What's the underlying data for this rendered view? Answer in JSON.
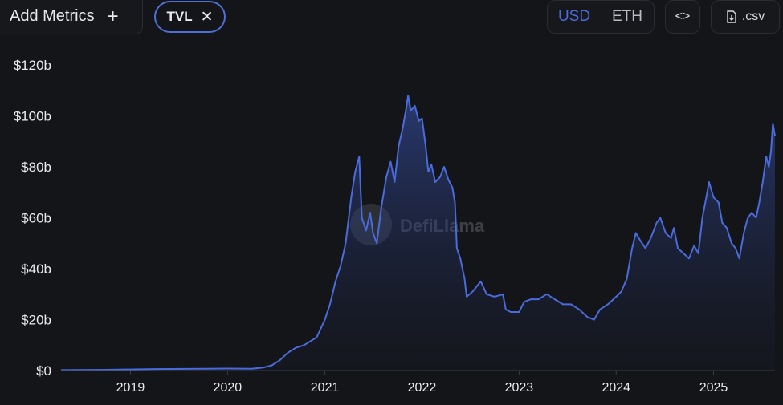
{
  "toolbar": {
    "add_metrics_label": "Add Metrics",
    "add_icon": "+",
    "metric_chip_label": "TVL",
    "remove_icon": "✕",
    "currency_options": [
      "USD",
      "ETH"
    ],
    "selected_currency": "USD",
    "embed_icon": "<>",
    "csv_label": ".csv"
  },
  "watermark": "DefiLlama",
  "colors": {
    "background": "#141518",
    "line": "#4a6bdc",
    "accent": "#4a6bdc"
  },
  "chart_data": {
    "type": "area",
    "title": "",
    "xlabel": "",
    "ylabel": "",
    "ylim": [
      0,
      120
    ],
    "y_unit": "b",
    "y_ticks": [
      "$0",
      "$20b",
      "$40b",
      "$60b",
      "$80b",
      "$100b",
      "$120b"
    ],
    "x_ticks": [
      "2019",
      "2020",
      "2021",
      "2022",
      "2023",
      "2024",
      "2025"
    ],
    "xlim": [
      "2018-04-15",
      "2025-08-20"
    ],
    "grid": false,
    "series": [
      {
        "name": "TVL",
        "points": [
          [
            "2018-04-15",
            0.2
          ],
          [
            "2018-10-01",
            0.3
          ],
          [
            "2019-04-01",
            0.6
          ],
          [
            "2019-10-01",
            0.7
          ],
          [
            "2020-01-01",
            0.8
          ],
          [
            "2020-04-01",
            0.7
          ],
          [
            "2020-05-15",
            1.2
          ],
          [
            "2020-06-15",
            2
          ],
          [
            "2020-07-15",
            4
          ],
          [
            "2020-08-15",
            7
          ],
          [
            "2020-09-15",
            9
          ],
          [
            "2020-10-15",
            10
          ],
          [
            "2020-12-01",
            13
          ],
          [
            "2021-01-01",
            20
          ],
          [
            "2021-01-20",
            26
          ],
          [
            "2021-02-10",
            35
          ],
          [
            "2021-03-01",
            41
          ],
          [
            "2021-03-20",
            50
          ],
          [
            "2021-04-10",
            68
          ],
          [
            "2021-04-25",
            78
          ],
          [
            "2021-05-10",
            84
          ],
          [
            "2021-05-20",
            60
          ],
          [
            "2021-06-05",
            55
          ],
          [
            "2021-06-20",
            62
          ],
          [
            "2021-07-01",
            54
          ],
          [
            "2021-07-15",
            50
          ],
          [
            "2021-08-01",
            64
          ],
          [
            "2021-08-20",
            76
          ],
          [
            "2021-09-05",
            82
          ],
          [
            "2021-09-20",
            74
          ],
          [
            "2021-10-05",
            88
          ],
          [
            "2021-10-20",
            95
          ],
          [
            "2021-11-01",
            102
          ],
          [
            "2021-11-10",
            108
          ],
          [
            "2021-11-20",
            102
          ],
          [
            "2021-12-05",
            104
          ],
          [
            "2021-12-20",
            98
          ],
          [
            "2022-01-01",
            99
          ],
          [
            "2022-01-15",
            88
          ],
          [
            "2022-01-25",
            78
          ],
          [
            "2022-02-05",
            81
          ],
          [
            "2022-02-20",
            74
          ],
          [
            "2022-03-10",
            76
          ],
          [
            "2022-03-25",
            80
          ],
          [
            "2022-04-10",
            75
          ],
          [
            "2022-04-25",
            72
          ],
          [
            "2022-05-05",
            66
          ],
          [
            "2022-05-12",
            48
          ],
          [
            "2022-05-25",
            44
          ],
          [
            "2022-06-10",
            36
          ],
          [
            "2022-06-18",
            29
          ],
          [
            "2022-07-10",
            31
          ],
          [
            "2022-08-10",
            35
          ],
          [
            "2022-09-01",
            30
          ],
          [
            "2022-10-01",
            29
          ],
          [
            "2022-11-01",
            30
          ],
          [
            "2022-11-12",
            24
          ],
          [
            "2022-12-01",
            23
          ],
          [
            "2023-01-01",
            23
          ],
          [
            "2023-01-20",
            27
          ],
          [
            "2023-02-15",
            28
          ],
          [
            "2023-03-15",
            28
          ],
          [
            "2023-04-15",
            30
          ],
          [
            "2023-05-15",
            28
          ],
          [
            "2023-06-15",
            26
          ],
          [
            "2023-07-15",
            26
          ],
          [
            "2023-08-15",
            24
          ],
          [
            "2023-09-15",
            21
          ],
          [
            "2023-10-10",
            20
          ],
          [
            "2023-11-01",
            24
          ],
          [
            "2023-12-01",
            26
          ],
          [
            "2024-01-01",
            29
          ],
          [
            "2024-01-20",
            31
          ],
          [
            "2024-02-10",
            36
          ],
          [
            "2024-03-01",
            48
          ],
          [
            "2024-03-15",
            54
          ],
          [
            "2024-04-01",
            51
          ],
          [
            "2024-04-20",
            48
          ],
          [
            "2024-05-10",
            52
          ],
          [
            "2024-06-01",
            58
          ],
          [
            "2024-06-15",
            60
          ],
          [
            "2024-07-05",
            54
          ],
          [
            "2024-07-25",
            52
          ],
          [
            "2024-08-05",
            56
          ],
          [
            "2024-08-20",
            48
          ],
          [
            "2024-09-10",
            46
          ],
          [
            "2024-10-01",
            44
          ],
          [
            "2024-10-20",
            49
          ],
          [
            "2024-11-05",
            46
          ],
          [
            "2024-11-20",
            60
          ],
          [
            "2024-12-05",
            68
          ],
          [
            "2024-12-15",
            74
          ],
          [
            "2025-01-01",
            68
          ],
          [
            "2025-01-20",
            66
          ],
          [
            "2025-02-03",
            58
          ],
          [
            "2025-02-20",
            56
          ],
          [
            "2025-03-10",
            50
          ],
          [
            "2025-03-25",
            48
          ],
          [
            "2025-04-08",
            44
          ],
          [
            "2025-04-25",
            54
          ],
          [
            "2025-05-10",
            60
          ],
          [
            "2025-05-25",
            62
          ],
          [
            "2025-06-10",
            60
          ],
          [
            "2025-06-22",
            66
          ],
          [
            "2025-07-05",
            74
          ],
          [
            "2025-07-18",
            84
          ],
          [
            "2025-07-28",
            80
          ],
          [
            "2025-08-05",
            86
          ],
          [
            "2025-08-12",
            97
          ],
          [
            "2025-08-20",
            92
          ]
        ]
      }
    ]
  }
}
